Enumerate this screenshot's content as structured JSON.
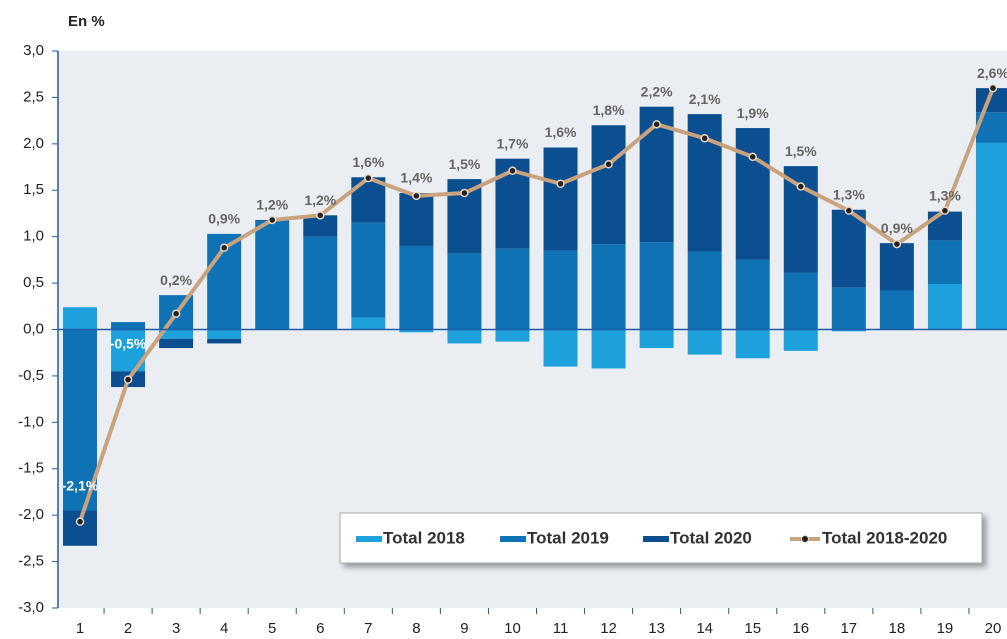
{
  "chart_data": {
    "type": "bar-line",
    "y_axis_label": "En %",
    "categories": [
      "1",
      "2",
      "3",
      "4",
      "5",
      "6",
      "7",
      "8",
      "9",
      "10",
      "11",
      "12",
      "13",
      "14",
      "15",
      "16",
      "17",
      "18",
      "19",
      "20"
    ],
    "series": [
      {
        "name": "Total 2018",
        "type": "bar",
        "color": "#1da1dc",
        "values": [
          0.24,
          -0.45,
          -0.1,
          -0.1,
          0,
          0,
          0.13,
          -0.03,
          -0.15,
          -0.13,
          -0.4,
          -0.42,
          -0.2,
          -0.27,
          -0.31,
          -0.23,
          -0.02,
          0,
          0.49,
          2.01
        ]
      },
      {
        "name": "Total 2019",
        "type": "bar",
        "color": "#0e72b5",
        "values": [
          -1.95,
          0.08,
          0.37,
          1.03,
          1.17,
          1.0,
          1.02,
          0.9,
          0.82,
          0.87,
          0.85,
          0.92,
          0.94,
          0.84,
          0.75,
          0.61,
          0.45,
          0.42,
          0.47,
          0.33
        ]
      },
      {
        "name": "Total 2020",
        "type": "bar",
        "color": "#0b4f91",
        "values": [
          -0.38,
          -0.17,
          -0.1,
          -0.05,
          0.01,
          0.23,
          0.49,
          0.57,
          0.8,
          0.97,
          1.11,
          1.28,
          1.46,
          1.48,
          1.42,
          1.15,
          0.84,
          0.51,
          0.31,
          0.26
        ]
      },
      {
        "name": "Total 2018-2020",
        "type": "line",
        "color": "#c9a27e",
        "values": [
          -2.07,
          -0.54,
          0.17,
          0.88,
          1.18,
          1.23,
          1.63,
          1.44,
          1.47,
          1.71,
          1.57,
          1.78,
          2.21,
          2.06,
          1.86,
          1.54,
          1.28,
          0.92,
          1.28,
          2.6
        ],
        "value_labels": [
          "-2,1%",
          "-0,5%",
          "0,2%",
          "0,9%",
          "1,2%",
          "1,2%",
          "1,6%",
          "1,4%",
          "1,5%",
          "1,7%",
          "1,6%",
          "1,8%",
          "2,2%",
          "2,1%",
          "1,9%",
          "1,5%",
          "1,3%",
          "0,9%",
          "1,3%",
          "2,6%"
        ]
      }
    ],
    "ylim": [
      -3,
      3
    ],
    "yticks": [
      {
        "value": -3,
        "label": "-3,0"
      },
      {
        "value": -2.5,
        "label": "-2,5"
      },
      {
        "value": -2,
        "label": "-2,0"
      },
      {
        "value": -1.5,
        "label": "-1,5"
      },
      {
        "value": -1,
        "label": "-1,0"
      },
      {
        "value": -0.5,
        "label": "-0,5"
      },
      {
        "value": 0,
        "label": "0,0"
      },
      {
        "value": 0.5,
        "label": "0,5"
      },
      {
        "value": 1,
        "label": "1,0"
      },
      {
        "value": 1.5,
        "label": "1,5"
      },
      {
        "value": 2,
        "label": "2,0"
      },
      {
        "value": 2.5,
        "label": "2,5"
      },
      {
        "value": 3,
        "label": "3,0"
      }
    ],
    "legend": "bottom-right"
  }
}
